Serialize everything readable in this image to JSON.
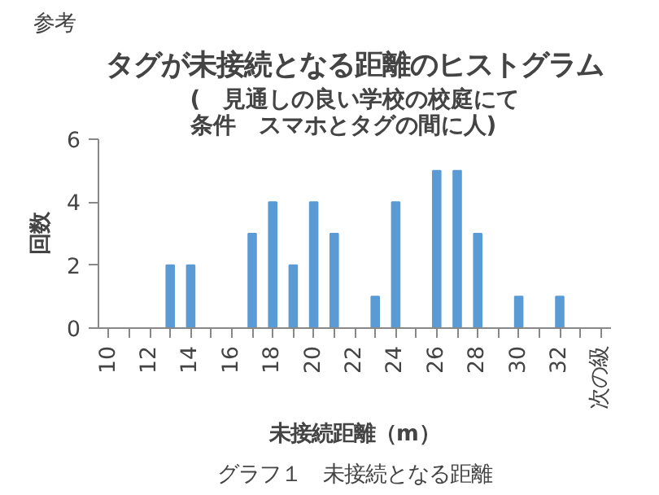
{
  "chart_data": {
    "type": "bar",
    "title": "タグが未接続となる距離のヒストグラム",
    "subtitle": "(　見通しの良い学校の校庭にて条件　スマホとタグの間に人)",
    "xlabel": "未接続距離（m）",
    "ylabel": "回数",
    "categories": [
      "10",
      null,
      "12",
      null,
      "14",
      null,
      "16",
      null,
      "18",
      null,
      "20",
      null,
      "22",
      null,
      "24",
      null,
      "26",
      null,
      "28",
      null,
      "30",
      null,
      "32",
      null,
      "次の級"
    ],
    "values": [
      0,
      0,
      0,
      2,
      2,
      0,
      0,
      3,
      4,
      2,
      4,
      3,
      0,
      1,
      4,
      0,
      5,
      5,
      3,
      0,
      1,
      0,
      1,
      0,
      0
    ],
    "color": "#5b9bd5",
    "ylim": [
      0,
      6
    ],
    "yticks": [
      0,
      2,
      4,
      6
    ],
    "grid": false,
    "annotations": [
      "参考",
      "グラフ１　未接続となる距離"
    ]
  }
}
